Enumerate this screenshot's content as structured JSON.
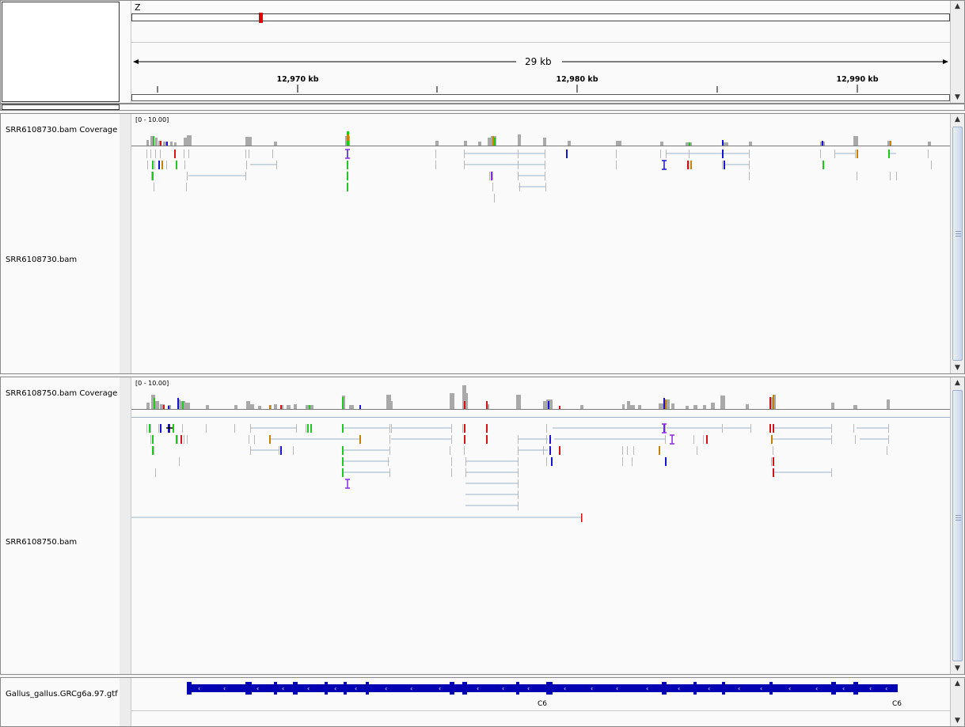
{
  "ruler": {
    "chromosome": "Z",
    "span_label": "29 kb",
    "ticks": [
      "12,970 kb",
      "12,980 kb",
      "12,990 kb"
    ]
  },
  "tracks": [
    {
      "name": "SRR6108730.bam Coverage",
      "range": "[0 - 10.00]"
    },
    {
      "name": "SRR6108730.bam"
    },
    {
      "name": "SRR6108750.bam Coverage",
      "range": "[0 - 10.00]"
    },
    {
      "name": "SRR6108750.bam"
    }
  ],
  "feature_track": {
    "name": "Gallus_gallus.GRCg6a.97.gtf",
    "gene_labels": [
      "C6",
      "C6"
    ]
  },
  "colors": {
    "coverage": "#a9a9a9",
    "read": "#b8b8b8",
    "junction": "#9bb2c8",
    "gene": "#0000b2",
    "locator": "#e00000",
    "mismatch_a": "#1ec81e",
    "mismatch_c": "#1414d2",
    "mismatch_g": "#c88200",
    "mismatch_t": "#d21414",
    "insertion": "#8a2be2"
  }
}
